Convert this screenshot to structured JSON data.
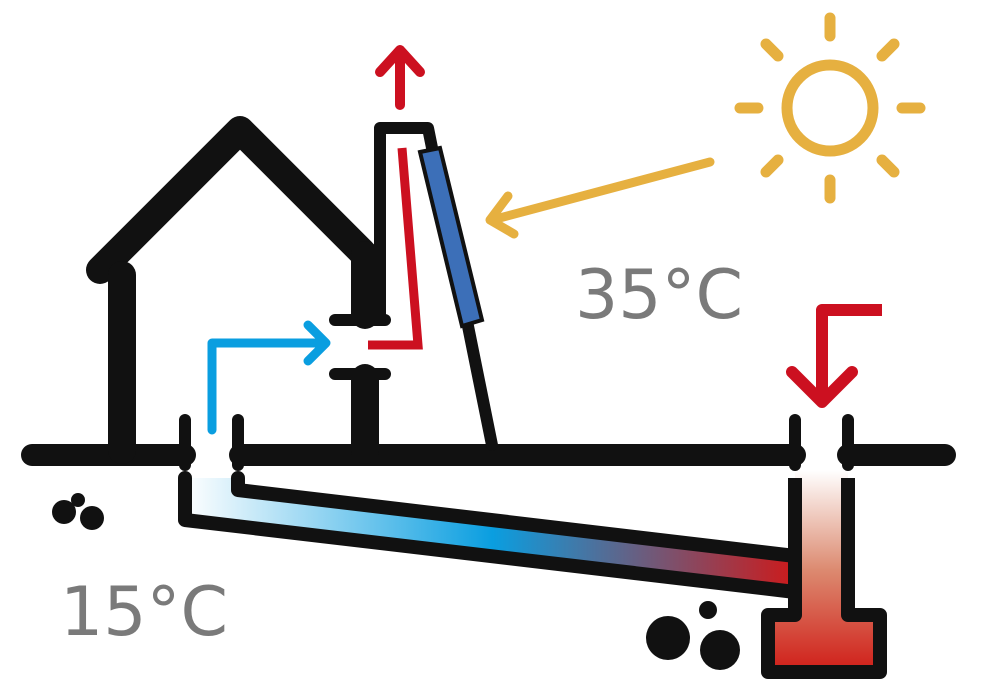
{
  "labels": {
    "top": "35°C",
    "bottom": "15°C"
  }
}
